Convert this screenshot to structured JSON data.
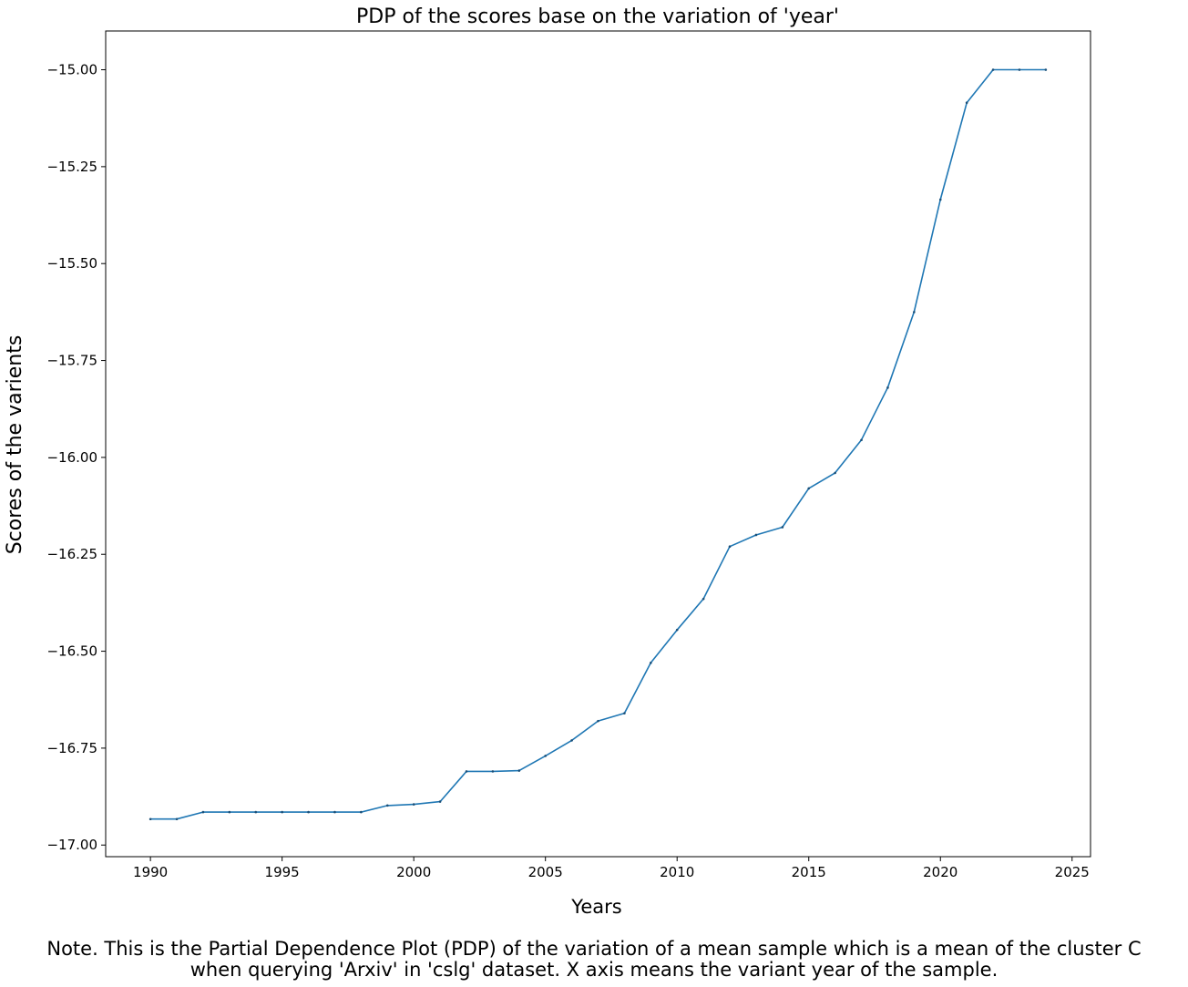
{
  "chart_data": {
    "type": "line",
    "title": "PDP of the scores base on the variation of 'year'",
    "xlabel": "Years",
    "ylabel": "Scores of the varients",
    "xlim": [
      1988.3,
      2025.7
    ],
    "ylim": [
      -17.03,
      -14.9
    ],
    "xticks": [
      1990,
      1995,
      2000,
      2005,
      2010,
      2015,
      2020,
      2025
    ],
    "xtick_labels": [
      "1990",
      "1995",
      "2000",
      "2005",
      "2010",
      "2015",
      "2020",
      "2025"
    ],
    "yticks": [
      -15.0,
      -15.25,
      -15.5,
      -15.75,
      -16.0,
      -16.25,
      -16.5,
      -16.75,
      -17.0
    ],
    "ytick_labels": [
      "−15.00",
      "−15.25",
      "−15.50",
      "−15.75",
      "−16.00",
      "−16.25",
      "−16.50",
      "−16.75",
      "−17.00"
    ],
    "grid": false,
    "color": "#1f77b4",
    "x": [
      1990,
      1991,
      1992,
      1993,
      1994,
      1995,
      1996,
      1997,
      1998,
      1999,
      2000,
      2001,
      2002,
      2003,
      2004,
      2005,
      2006,
      2007,
      2008,
      2009,
      2010,
      2011,
      2012,
      2013,
      2014,
      2015,
      2016,
      2017,
      2018,
      2019,
      2020,
      2021,
      2022,
      2023,
      2024
    ],
    "y": [
      -16.933,
      -16.933,
      -16.915,
      -16.915,
      -16.915,
      -16.915,
      -16.915,
      -16.915,
      -16.915,
      -16.898,
      -16.895,
      -16.888,
      -16.81,
      -16.81,
      -16.808,
      -16.77,
      -16.73,
      -16.68,
      -16.66,
      -16.53,
      -16.445,
      -16.365,
      -16.23,
      -16.2,
      -16.18,
      -16.08,
      -16.04,
      -15.955,
      -15.82,
      -15.625,
      -15.335,
      -15.085,
      -15.0,
      -15.0,
      -15.0
    ]
  },
  "note": {
    "line1": "Note. This is the Partial Dependence Plot (PDP) of the variation of a mean sample which is a mean of the cluster C",
    "line2": "when querying 'Arxiv' in 'cslg' dataset. X axis means the variant year of the sample."
  }
}
